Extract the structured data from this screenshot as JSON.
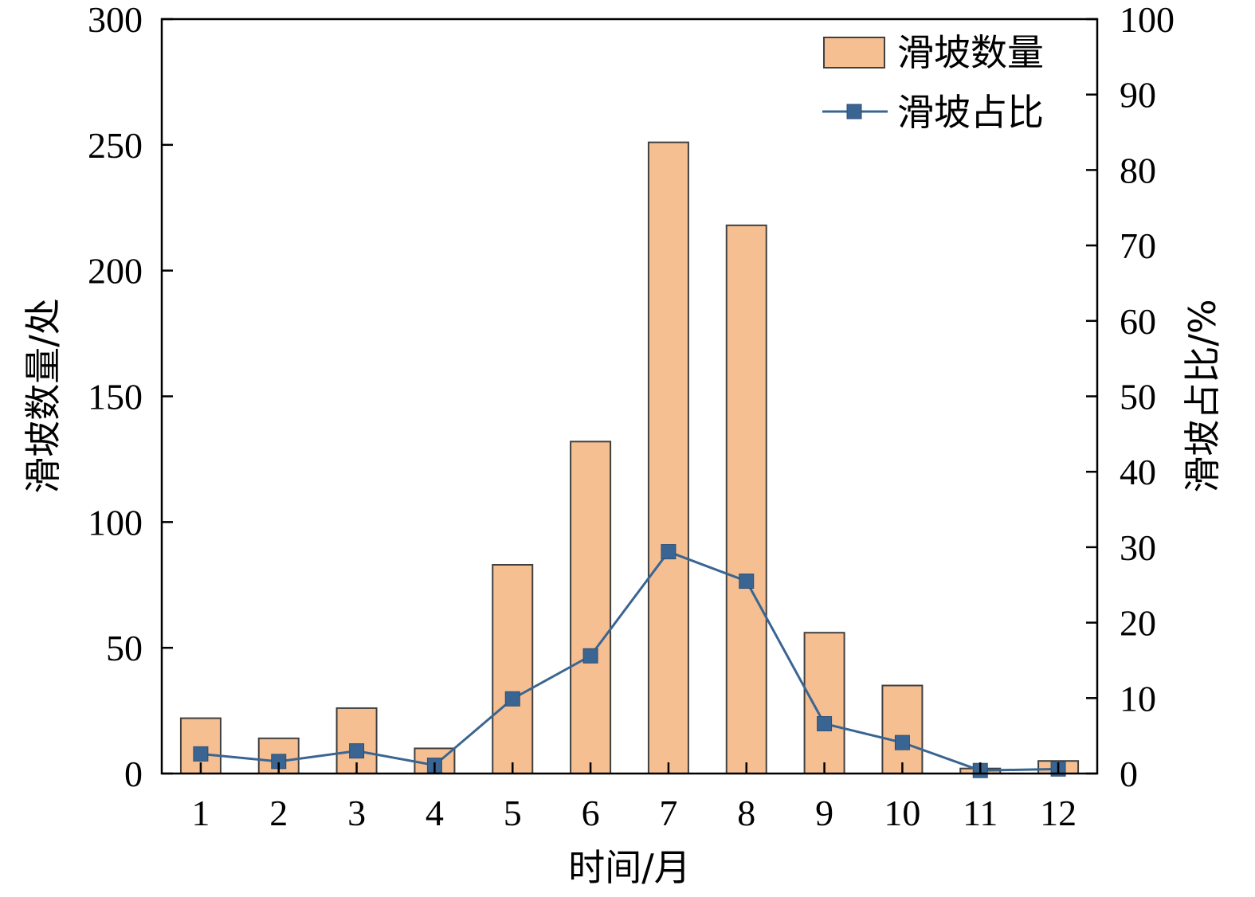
{
  "chart_data": {
    "type": "bar",
    "categories": [
      "1",
      "2",
      "3",
      "4",
      "5",
      "6",
      "7",
      "8",
      "9",
      "10",
      "11",
      "12"
    ],
    "series": [
      {
        "name": "滑坡数量",
        "type": "bar",
        "axis": "left",
        "color": "#f5bf92",
        "values": [
          22,
          14,
          26,
          10,
          83,
          132,
          251,
          218,
          56,
          35,
          2,
          5
        ]
      },
      {
        "name": "滑坡占比",
        "type": "line",
        "axis": "right",
        "color": "#3a6592",
        "marker": "square",
        "values": [
          2.6,
          1.6,
          3.0,
          1.1,
          9.9,
          15.6,
          29.4,
          25.5,
          6.6,
          4.1,
          0.4,
          0.6
        ]
      }
    ],
    "xlabel": "时间/月",
    "ylabel": "滑坡数量/处",
    "y2label": "滑坡占比/%",
    "ylim": [
      0,
      300
    ],
    "y2lim": [
      0,
      100
    ],
    "yticks": [
      "0",
      "50",
      "100",
      "150",
      "200",
      "250",
      "300"
    ],
    "y2ticks": [
      "0",
      "10",
      "20",
      "30",
      "40",
      "50",
      "60",
      "70",
      "80",
      "90",
      "100"
    ],
    "legend": "top-right",
    "grid": false
  }
}
